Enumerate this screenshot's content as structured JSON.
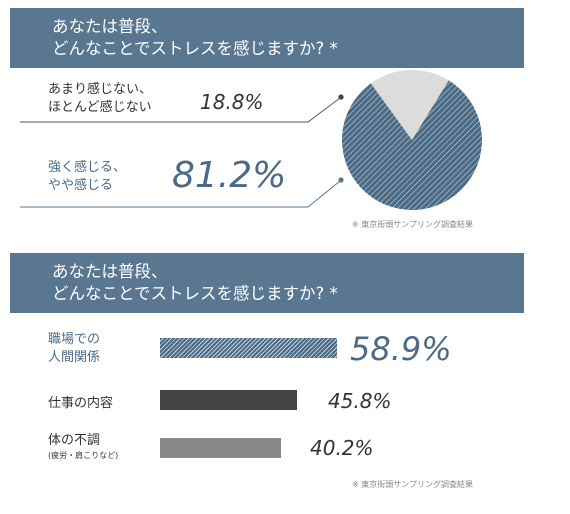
{
  "colors": {
    "banner": "#5a7792",
    "accent": "#4a6a86",
    "hatch_light": "#c3d0dc",
    "dark": "#444444",
    "gray": "#888888",
    "slice_light": "#dcdcdc"
  },
  "section1": {
    "title_line1": "あなたは普段、",
    "title_line2": "どんなことでストレスを感じますか? *",
    "items": [
      {
        "line1": "あまり感じない、",
        "line2": "ほとんど感じない",
        "pct": "18.8%"
      },
      {
        "line1": "強く感じる、",
        "line2": "やや感じる",
        "pct": "81.2%"
      }
    ],
    "note": "※ 東京街頭サンプリング調査結果"
  },
  "section2": {
    "title_line1": "あなたは普段、",
    "title_line2": "どんなことでストレスを感じますか? *",
    "items": [
      {
        "line1": "職場での",
        "line2": "人間関係",
        "pct": "58.9%"
      },
      {
        "line1": "仕事の内容",
        "line2": "",
        "pct": "45.8%"
      },
      {
        "line1": "体の不調",
        "line2": "(疲労・肩こりなど)",
        "pct": "40.2%"
      }
    ],
    "note": "※ 東京街頭サンプリング調査結果"
  },
  "chart_data": [
    {
      "type": "pie",
      "categories": [
        "あまり感じない、ほとんど感じない",
        "強く感じる、やや感じる"
      ],
      "values": [
        18.8,
        81.2
      ]
    },
    {
      "type": "bar",
      "orientation": "horizontal",
      "categories": [
        "職場での人間関係",
        "仕事の内容",
        "体の不調(疲労・肩こりなど)"
      ],
      "values": [
        58.9,
        45.8,
        40.2
      ]
    }
  ]
}
